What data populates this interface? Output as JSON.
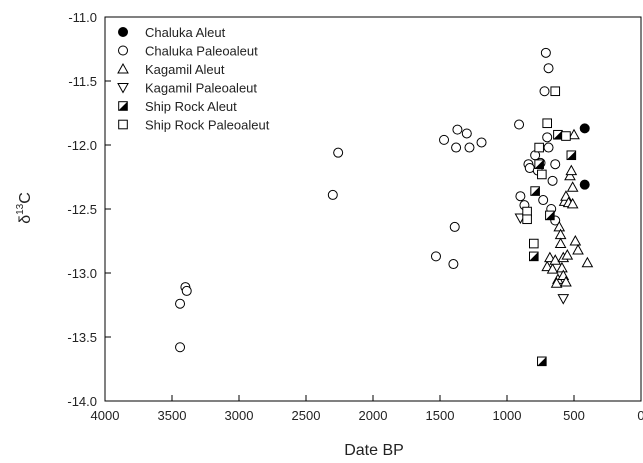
{
  "chart_data": {
    "type": "scatter",
    "title": "",
    "xlabel": "Date BP",
    "ylabel": {
      "prefix": "δ",
      "sup": "13",
      "suffix": "C"
    },
    "xlim": [
      4000,
      0
    ],
    "ylim": [
      -14.0,
      -11.0
    ],
    "x_ticks": [
      4000,
      3500,
      3000,
      2500,
      2000,
      1500,
      1000,
      500,
      0
    ],
    "y_ticks": [
      -11.0,
      -11.5,
      -12.0,
      -12.5,
      -13.0,
      -13.5,
      -14.0
    ],
    "x_tick_labels": [
      "4000",
      "3500",
      "3000",
      "2500",
      "2000",
      "1500",
      "1000",
      "500",
      "0"
    ],
    "y_tick_labels": [
      "-11.0",
      "-11.5",
      "-12.0",
      "-12.5",
      "-13.0",
      "-13.5",
      "-14.0"
    ],
    "grid": false,
    "legend_position": "top-left",
    "series": [
      {
        "name": "Chaluka Aleut",
        "marker": "circle-filled",
        "points": [
          [
            420,
            -11.87
          ],
          [
            420,
            -12.31
          ]
        ]
      },
      {
        "name": "Chaluka Paleoaleut",
        "marker": "circle-open",
        "points": [
          [
            3440,
            -13.58
          ],
          [
            3440,
            -13.24
          ],
          [
            3400,
            -13.11
          ],
          [
            3390,
            -13.14
          ],
          [
            2300,
            -12.39
          ],
          [
            2260,
            -12.06
          ],
          [
            1530,
            -12.87
          ],
          [
            1470,
            -11.96
          ],
          [
            1400,
            -12.93
          ],
          [
            1390,
            -12.64
          ],
          [
            1380,
            -12.02
          ],
          [
            1370,
            -11.88
          ],
          [
            1300,
            -11.91
          ],
          [
            1280,
            -12.02
          ],
          [
            1190,
            -11.98
          ],
          [
            910,
            -11.84
          ],
          [
            900,
            -12.4
          ],
          [
            870,
            -12.47
          ],
          [
            840,
            -12.15
          ],
          [
            830,
            -12.18
          ],
          [
            790,
            -12.08
          ],
          [
            770,
            -12.2
          ],
          [
            750,
            -12.14
          ],
          [
            730,
            -12.43
          ],
          [
            710,
            -11.28
          ],
          [
            700,
            -11.94
          ],
          [
            690,
            -11.4
          ],
          [
            690,
            -12.02
          ],
          [
            670,
            -12.5
          ],
          [
            660,
            -12.28
          ],
          [
            640,
            -12.15
          ],
          [
            640,
            -12.59
          ],
          [
            720,
            -11.58
          ]
        ]
      },
      {
        "name": "Kagamil Aleut",
        "marker": "triangle-up-open",
        "points": [
          [
            700,
            -12.95
          ],
          [
            680,
            -12.88
          ],
          [
            660,
            -12.97
          ],
          [
            640,
            -12.9
          ],
          [
            620,
            -13.05
          ],
          [
            610,
            -12.64
          ],
          [
            600,
            -12.7
          ],
          [
            600,
            -12.77
          ],
          [
            590,
            -12.96
          ],
          [
            580,
            -12.88
          ],
          [
            580,
            -13.02
          ],
          [
            570,
            -12.44
          ],
          [
            560,
            -12.4
          ],
          [
            550,
            -12.86
          ],
          [
            540,
            -12.45
          ],
          [
            530,
            -12.24
          ],
          [
            520,
            -12.2
          ],
          [
            510,
            -12.33
          ],
          [
            510,
            -12.46
          ],
          [
            500,
            -11.92
          ],
          [
            490,
            -12.75
          ],
          [
            470,
            -12.82
          ],
          [
            400,
            -12.92
          ],
          [
            630,
            -13.08
          ],
          [
            560,
            -13.07
          ]
        ]
      },
      {
        "name": "Kagamil Paleoaleut",
        "marker": "triangle-down-open",
        "points": [
          [
            900,
            -12.57
          ],
          [
            580,
            -13.2
          ]
        ]
      },
      {
        "name": "Ship Rock Aleut",
        "marker": "square-half",
        "points": [
          [
            790,
            -12.36
          ],
          [
            800,
            -12.87
          ],
          [
            760,
            -12.15
          ],
          [
            740,
            -13.69
          ],
          [
            680,
            -12.55
          ],
          [
            620,
            -11.92
          ],
          [
            520,
            -12.08
          ]
        ]
      },
      {
        "name": "Ship Rock Paleoaleut",
        "marker": "square-open",
        "points": [
          [
            850,
            -12.52
          ],
          [
            850,
            -12.58
          ],
          [
            800,
            -12.77
          ],
          [
            760,
            -12.02
          ],
          [
            740,
            -12.23
          ],
          [
            700,
            -11.83
          ],
          [
            640,
            -11.58
          ],
          [
            560,
            -11.93
          ]
        ]
      }
    ]
  }
}
